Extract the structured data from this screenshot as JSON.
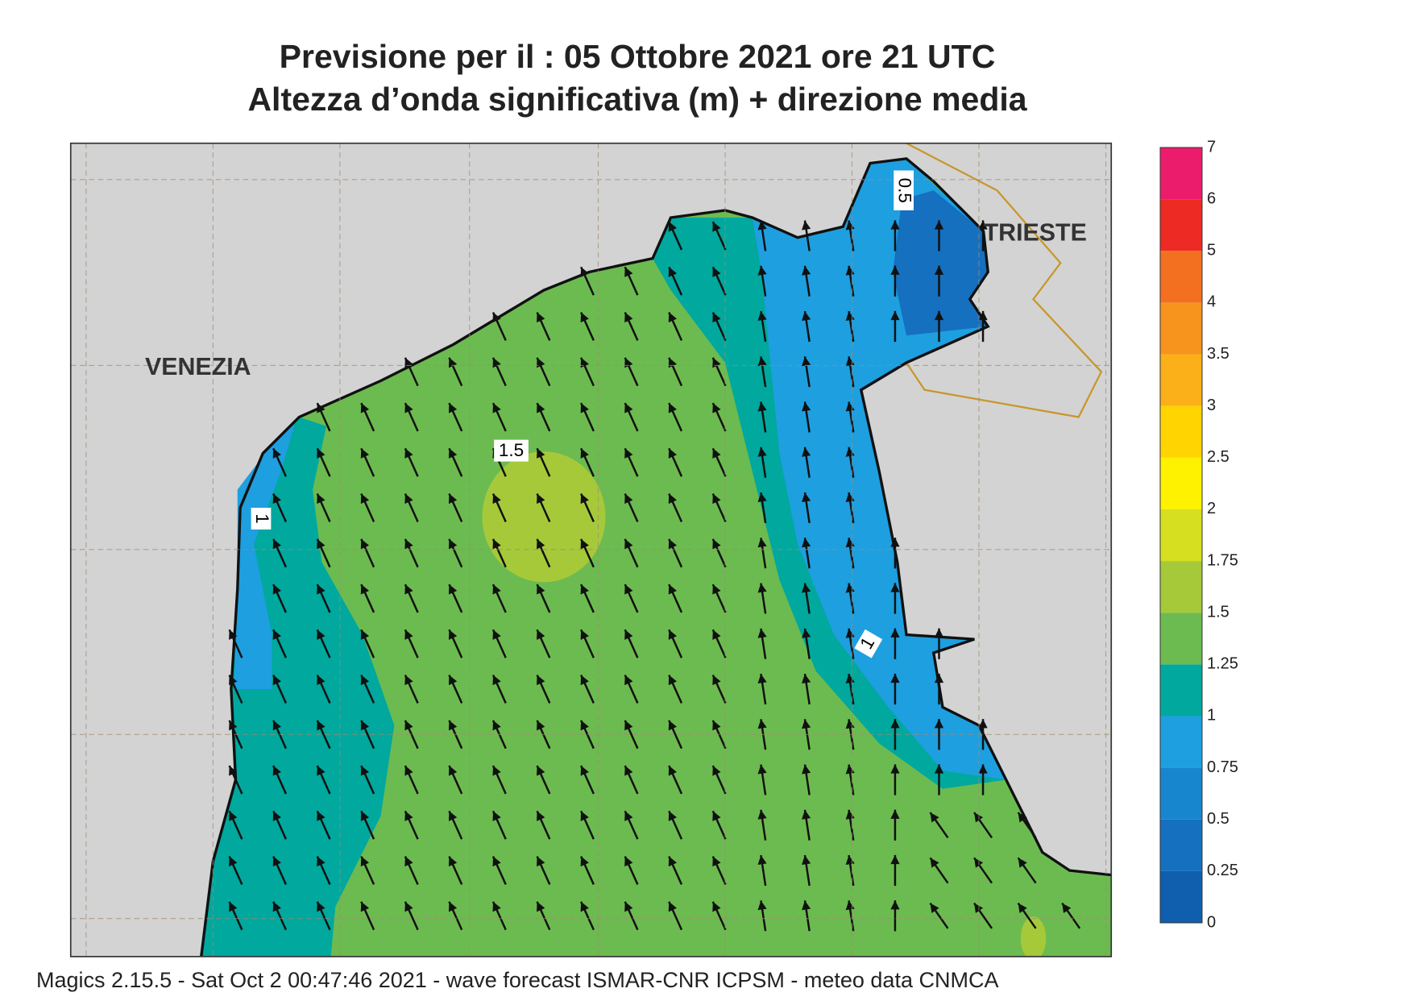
{
  "header": {
    "title": "Previsione per il  :  05  Ottobre  2021   ore 21 UTC",
    "subtitle": "Altezza d’onda significativa (m) + direzione media"
  },
  "places": [
    "VENEZIA",
    "TRIESTE"
  ],
  "contour_labels": [
    "1.5",
    "1",
    "1",
    "0.5"
  ],
  "legend": {
    "ticks": [
      0,
      0.25,
      0.5,
      0.75,
      1,
      1.25,
      1.5,
      1.75,
      2,
      2.5,
      3,
      3.5,
      4,
      5,
      6,
      7
    ],
    "colors": [
      "#0f5fae",
      "#1570bf",
      "#1886cf",
      "#1e9fe0",
      "#00a89e",
      "#6cbb50",
      "#a6c93a",
      "#d6e020",
      "#fff200",
      "#ffd400",
      "#fbb01a",
      "#f7941d",
      "#f37021",
      "#ee2a24",
      "#ec1c6c"
    ]
  },
  "footer": "Magics 2.15.5 - Sat Oct  2 00:47:46 2021 - wave forecast  ISMAR-CNR  ICPSM - meteo data   CNMCA"
}
